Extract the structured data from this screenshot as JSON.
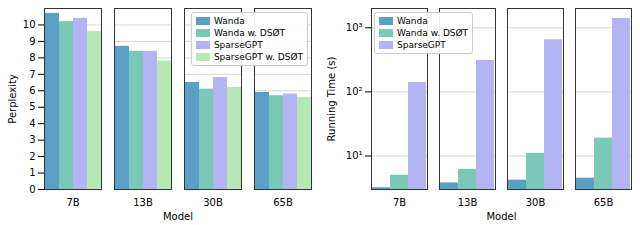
{
  "chart_data": [
    {
      "type": "bar",
      "categories": [
        "7B",
        "13B",
        "30B",
        "65B"
      ],
      "xlabel": "Model",
      "ylabel": "Perplexity",
      "ylim": [
        0,
        11
      ],
      "yticks": [
        0,
        1,
        2,
        3,
        4,
        5,
        6,
        7,
        8,
        9,
        10
      ],
      "grid": true,
      "legend": "upper right",
      "series": [
        {
          "name": "Wanda",
          "color": "#5a9fc4",
          "values": [
            10.7,
            8.7,
            6.5,
            5.9
          ]
        },
        {
          "name": "Wanda w. DSØT",
          "color": "#7cc8b8",
          "values": [
            10.2,
            8.4,
            6.1,
            5.7
          ]
        },
        {
          "name": "SparseGPT",
          "color": "#b4b4f4",
          "values": [
            10.4,
            8.4,
            6.8,
            5.8
          ]
        },
        {
          "name": "SparseGPT w. DSØT",
          "color": "#b6e8b4",
          "values": [
            9.6,
            7.8,
            6.2,
            5.6
          ]
        }
      ]
    },
    {
      "type": "bar",
      "categories": [
        "7B",
        "13B",
        "30B",
        "65B"
      ],
      "xlabel": "Model",
      "ylabel": "Running Time (s)",
      "log": "y",
      "ylim": [
        3,
        2000
      ],
      "yticks": [
        {
          "value": 10,
          "label": "10¹"
        },
        {
          "value": 100,
          "label": "10²"
        },
        {
          "value": 1000,
          "label": "10³"
        }
      ],
      "grid": true,
      "legend": "upper left",
      "series": [
        {
          "name": "Wanda",
          "color": "#5a9fc4",
          "values": [
            3.2,
            3.8,
            4.2,
            4.5
          ]
        },
        {
          "name": "Wanda w. DSØT",
          "color": "#7cc8b8",
          "values": [
            5,
            6.2,
            11,
            19
          ]
        },
        {
          "name": "SparseGPT",
          "color": "#b4b4f4",
          "values": [
            140,
            310,
            650,
            1400
          ]
        }
      ]
    }
  ]
}
